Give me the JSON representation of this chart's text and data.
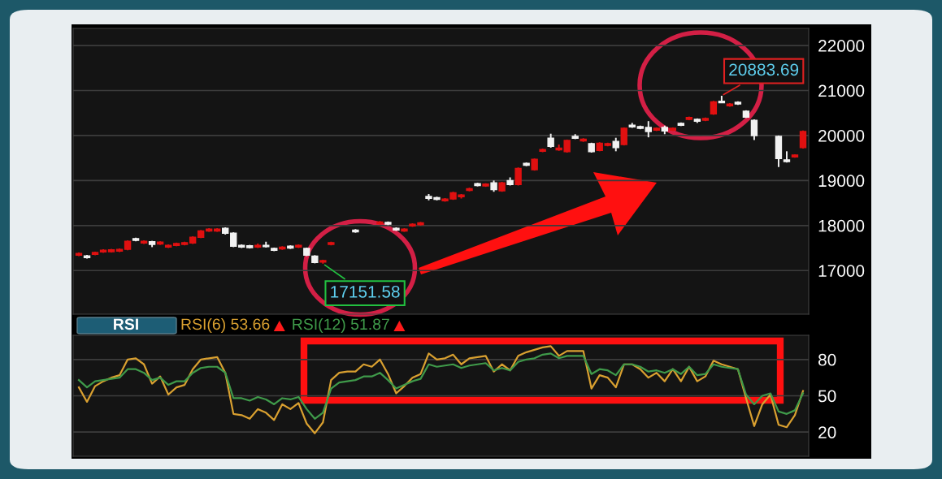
{
  "chart_data": [
    {
      "type": "candlestick",
      "categories": [
        null,
        null,
        null,
        null,
        null,
        null,
        null,
        null,
        null,
        null,
        null,
        null,
        null,
        null,
        null,
        null,
        null,
        null,
        null,
        null,
        null,
        null,
        null,
        null,
        null,
        null,
        null,
        null,
        null,
        null,
        null,
        null,
        null,
        null,
        null,
        null,
        null,
        null,
        null,
        null,
        null,
        null,
        null,
        null,
        null,
        null,
        null,
        null,
        null,
        null,
        null,
        null,
        null,
        null,
        null,
        null,
        null,
        null,
        null,
        null,
        null,
        null,
        null,
        null,
        null,
        null,
        null,
        null,
        null,
        null,
        null,
        null,
        null,
        null,
        null,
        null,
        null,
        null,
        null,
        null,
        null,
        null,
        null,
        null,
        null,
        null,
        null,
        null,
        null,
        null
      ],
      "ohlc": [
        [
          17341,
          17401,
          17321,
          17381
        ],
        [
          17327,
          17347,
          17267,
          17287
        ],
        [
          17360,
          17420,
          17340,
          17400
        ],
        [
          17413,
          17473,
          17393,
          17453
        ],
        [
          17420,
          17480,
          17400,
          17460
        ],
        [
          17430,
          17490,
          17410,
          17470
        ],
        [
          17470,
          17670,
          17450,
          17650
        ],
        [
          17710,
          17730,
          17650,
          17670
        ],
        [
          17610,
          17670,
          17590,
          17650
        ],
        [
          17640,
          17660,
          17520,
          17580
        ],
        [
          17590,
          17650,
          17570,
          17630
        ],
        [
          17520,
          17580,
          17500,
          17560
        ],
        [
          17560,
          17620,
          17540,
          17600
        ],
        [
          17580,
          17640,
          17560,
          17620
        ],
        [
          17610,
          17760,
          17590,
          17740
        ],
        [
          17740,
          17900,
          17720,
          17880
        ],
        [
          17880,
          17940,
          17860,
          17920
        ],
        [
          17880,
          17940,
          17860,
          17920
        ],
        [
          17940,
          17960,
          17800,
          17830
        ],
        [
          17830,
          17850,
          17520,
          17540
        ],
        [
          17560,
          17580,
          17500,
          17520
        ],
        [
          17550,
          17570,
          17490,
          17510
        ],
        [
          17520,
          17600,
          17500,
          17560
        ],
        [
          17560,
          17640,
          17510,
          17530
        ],
        [
          17490,
          17510,
          17430,
          17450
        ],
        [
          17480,
          17540,
          17460,
          17520
        ],
        [
          17540,
          17560,
          17480,
          17500
        ],
        [
          17520,
          17580,
          17500,
          17560
        ],
        [
          17490,
          17510,
          17320,
          17340
        ],
        [
          17320,
          17340,
          17160,
          17180
        ],
        [
          17190,
          17240,
          17151.58,
          17220
        ],
        [
          17580,
          17640,
          17560,
          17620
        ],
        null,
        null,
        [
          17900,
          17920,
          17840,
          17860
        ],
        null,
        null,
        [
          18040,
          18100,
          18020,
          18080
        ],
        [
          18070,
          18090,
          18010,
          18030
        ],
        [
          17940,
          17960,
          17880,
          17900
        ],
        [
          17880,
          17940,
          17860,
          17920
        ],
        [
          17990,
          18050,
          17970,
          18030
        ],
        [
          18020,
          18080,
          18000,
          18060
        ],
        [
          18645,
          18700,
          18560,
          18605
        ],
        [
          18620,
          18640,
          18560,
          18580
        ],
        [
          18550,
          18610,
          18530,
          18590
        ],
        [
          18590,
          18750,
          18570,
          18730
        ],
        [
          18640,
          18700,
          18600,
          18680
        ],
        [
          18780,
          18840,
          18760,
          18820
        ],
        [
          18930,
          18950,
          18870,
          18890
        ],
        [
          18880,
          18940,
          18860,
          18920
        ],
        [
          18950,
          19000,
          18750,
          18800
        ],
        [
          18770,
          18970,
          18750,
          18950
        ],
        [
          19000,
          19070,
          18890,
          18910
        ],
        [
          18910,
          19290,
          18890,
          19270
        ],
        [
          19380,
          19400,
          19320,
          19340
        ],
        [
          19240,
          19490,
          19220,
          19470
        ],
        [
          19650,
          19710,
          19630,
          19690
        ],
        [
          19940,
          20040,
          19730,
          19760
        ],
        [
          19680,
          19800,
          19660,
          19720
        ],
        [
          19640,
          19910,
          19620,
          19890
        ],
        [
          19980,
          20030,
          19920,
          19940
        ],
        [
          19880,
          19940,
          19860,
          19920
        ],
        [
          19820,
          19840,
          19620,
          19640
        ],
        [
          19670,
          19850,
          19650,
          19830
        ],
        [
          19780,
          19840,
          19760,
          19820
        ],
        [
          19870,
          19950,
          19650,
          19730
        ],
        [
          19800,
          20180,
          19780,
          20160
        ],
        [
          20230,
          20280,
          20170,
          20190
        ],
        [
          20200,
          20220,
          20140,
          20160
        ],
        [
          20180,
          20320,
          19960,
          20090
        ],
        [
          20120,
          20180,
          20100,
          20160
        ],
        [
          20180,
          20220,
          20030,
          20100
        ],
        [
          20120,
          20180,
          20100,
          20160
        ],
        [
          20270,
          20290,
          20210,
          20230
        ],
        [
          20360,
          20420,
          20340,
          20400
        ],
        [
          20360,
          20380,
          20280,
          20320
        ],
        [
          20340,
          20400,
          20320,
          20380
        ],
        [
          20480,
          20770,
          20460,
          20750
        ],
        [
          20760,
          20883.69,
          20720,
          20730
        ],
        [
          20660,
          20720,
          20640,
          20700
        ],
        [
          20740,
          20760,
          20680,
          20700
        ],
        [
          20540,
          20560,
          20390,
          20410
        ],
        [
          20340,
          20360,
          19900,
          20000
        ],
        null,
        null,
        [
          19980,
          20000,
          19300,
          19490
        ],
        [
          19460,
          19650,
          19400,
          19420
        ],
        [
          19525,
          19580,
          19505,
          19565
        ],
        [
          19730,
          20110,
          19710,
          20090
        ]
      ],
      "colors": [
        "#e01010",
        "#f2f2f2",
        "#e01010",
        "#e01010",
        "#e01010",
        "#e01010",
        "#e01010",
        "#f2f2f2",
        "#e01010",
        "#f2f2f2",
        "#e01010",
        "#e01010",
        "#e01010",
        "#e01010",
        "#e01010",
        "#e01010",
        "#e01010",
        "#e01010",
        "#f2f2f2",
        "#f2f2f2",
        "#f2f2f2",
        "#f2f2f2",
        "#e01010",
        "#f2f2f2",
        "#f2f2f2",
        "#e01010",
        "#f2f2f2",
        "#e01010",
        "#f2f2f2",
        "#f2f2f2",
        "#e01010",
        "#e01010",
        null,
        null,
        "#f2f2f2",
        null,
        null,
        "#e01010",
        "#f2f2f2",
        "#f2f2f2",
        "#e01010",
        "#e01010",
        "#e01010",
        "#f2f2f2",
        "#f2f2f2",
        "#e01010",
        "#e01010",
        "#e01010",
        "#e01010",
        "#f2f2f2",
        "#e01010",
        "#f2f2f2",
        "#e01010",
        "#f2f2f2",
        "#e01010",
        "#f2f2f2",
        "#e01010",
        "#e01010",
        "#f2f2f2",
        "#e01010",
        "#e01010",
        "#f2f2f2",
        "#e01010",
        "#f2f2f2",
        "#e01010",
        "#e01010",
        "#f2f2f2",
        "#e01010",
        "#f2f2f2",
        "#f2f2f2",
        "#f2f2f2",
        "#e01010",
        "#f2f2f2",
        "#e01010",
        "#f2f2f2",
        "#e01010",
        "#f2f2f2",
        "#e01010",
        "#e01010",
        "#f2f2f2",
        "#e01010",
        "#f2f2f2",
        "#f2f2f2",
        "#f2f2f2",
        null,
        null,
        "#f2f2f2",
        "#f2f2f2",
        "#e01010",
        "#e01010"
      ],
      "ylim": [
        16030,
        22380
      ],
      "yticks": [
        17000,
        18000,
        19000,
        20000,
        21000,
        22000
      ],
      "grid": "y",
      "annotations": [
        "17151.58",
        "20883.69"
      ]
    },
    {
      "type": "line",
      "title": "RSI",
      "categories": [
        null,
        null,
        null,
        null,
        null,
        null,
        null,
        null,
        null,
        null,
        null,
        null,
        null,
        null,
        null,
        null,
        null,
        null,
        null,
        null,
        null,
        null,
        null,
        null,
        null,
        null,
        null,
        null,
        null,
        null,
        null,
        null,
        null,
        null,
        null,
        null,
        null,
        null,
        null,
        null,
        null,
        null,
        null,
        null,
        null,
        null,
        null,
        null,
        null,
        null,
        null,
        null,
        null,
        null,
        null,
        null,
        null,
        null,
        null,
        null,
        null,
        null,
        null,
        null,
        null,
        null,
        null,
        null,
        null,
        null,
        null,
        null,
        null,
        null,
        null,
        null,
        null,
        null,
        null,
        null,
        null,
        null,
        null,
        null,
        null,
        null,
        null,
        null,
        null,
        null
      ],
      "series": [
        {
          "name": "RSI(6) 53.66",
          "color": "#d9a030",
          "values": [
            57,
            45,
            58,
            62,
            65,
            67,
            80,
            81,
            76,
            60,
            66,
            51,
            57,
            59,
            72,
            80,
            81,
            82,
            69,
            35,
            34,
            31,
            39,
            36,
            30,
            43,
            39,
            44,
            27,
            19,
            28,
            63,
            69,
            70,
            70,
            76,
            74,
            80,
            68,
            52,
            58,
            65,
            68,
            85,
            80,
            81,
            84,
            76,
            81,
            82,
            83,
            70,
            76,
            71,
            83,
            86,
            88,
            90,
            91,
            83,
            87,
            87,
            87,
            56,
            67,
            65,
            57,
            76,
            76,
            72,
            65,
            69,
            62,
            72,
            62,
            74,
            62,
            66,
            79,
            76,
            74,
            72,
            48,
            25,
            43,
            51,
            26,
            24,
            34,
            54
          ]
        },
        {
          "name": "RSI(12) 51.87",
          "color": "#3f9a4a",
          "values": [
            63,
            57,
            62,
            63,
            64,
            65,
            72,
            72,
            69,
            63,
            65,
            59,
            62,
            62,
            69,
            73,
            74,
            74,
            69,
            48,
            48,
            46,
            49,
            47,
            43,
            48,
            47,
            49,
            39,
            31,
            36,
            56,
            61,
            62,
            63,
            66,
            66,
            69,
            63,
            56,
            59,
            62,
            64,
            76,
            74,
            75,
            76,
            73,
            75,
            76,
            77,
            71,
            73,
            71,
            78,
            80,
            81,
            84,
            85,
            81,
            83,
            83,
            83,
            68,
            72,
            71,
            67,
            76,
            76,
            74,
            70,
            71,
            69,
            72,
            68,
            74,
            67,
            68,
            76,
            74,
            73,
            72,
            51,
            43,
            50,
            52,
            37,
            35,
            38,
            52
          ]
        }
      ],
      "ylim": [
        0,
        100
      ],
      "yticks": [
        20,
        50,
        80
      ],
      "grid": "y",
      "legend": "top left",
      "marker": "none",
      "line_style": "solid"
    }
  ]
}
